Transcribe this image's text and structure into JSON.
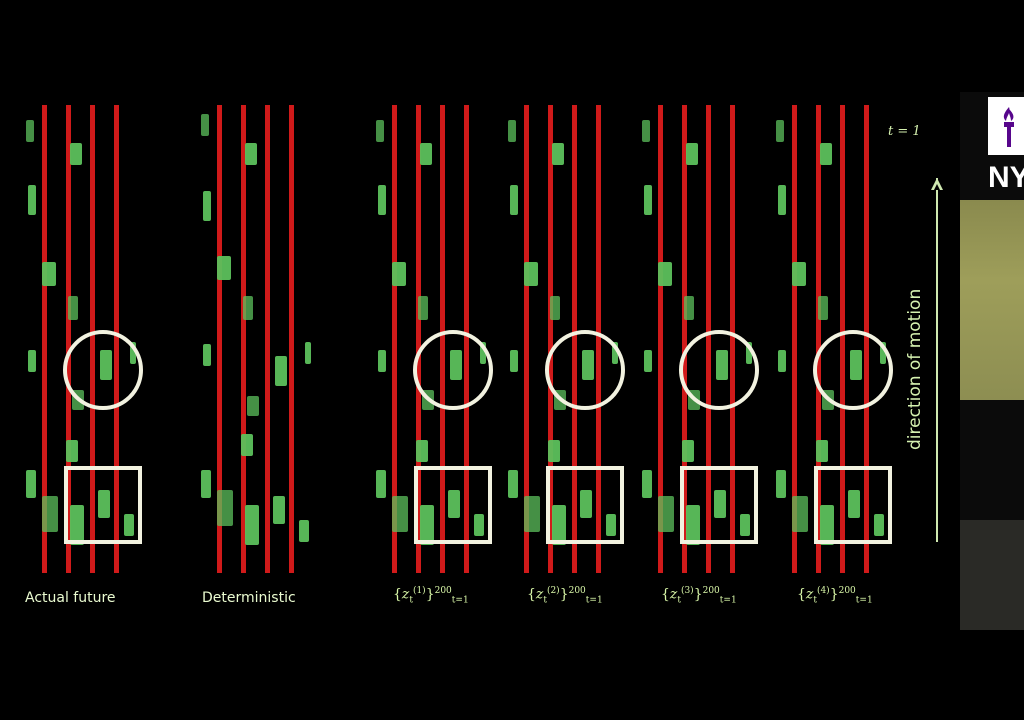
{
  "panels": [
    {
      "label": "Actual future"
    },
    {
      "label": "Deterministic"
    },
    {
      "label_math": {
        "symbol": "z",
        "sub": "t",
        "sup": "(1)",
        "range_sub": "t=1",
        "range_sup": "200"
      }
    },
    {
      "label_math": {
        "symbol": "z",
        "sub": "t",
        "sup": "(2)",
        "range_sub": "t=1",
        "range_sup": "200"
      }
    },
    {
      "label_math": {
        "symbol": "z",
        "sub": "t",
        "sup": "(3)",
        "range_sub": "t=1",
        "range_sup": "200"
      }
    },
    {
      "label_math": {
        "symbol": "z",
        "sub": "t",
        "sup": "(4)",
        "range_sub": "t=1",
        "range_sup": "200"
      }
    }
  ],
  "time_label": "t = 1",
  "direction_label": "direction of motion",
  "side_text": "NY",
  "colors": {
    "lane": "#d01a1a",
    "car": "#5cc05c",
    "highlight": "#f2f2e0",
    "background": "#000000"
  }
}
